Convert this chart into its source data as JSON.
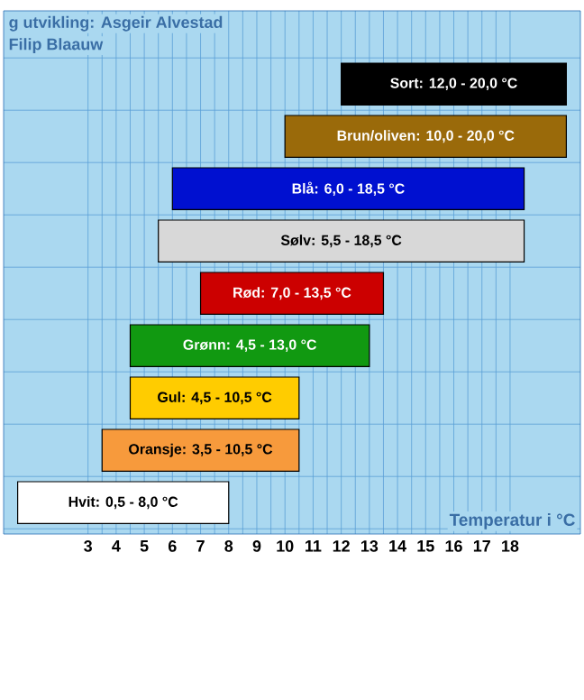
{
  "chart_data": {
    "type": "bar",
    "orientation": "horizontal",
    "annotations": [
      "g utvikling: Asgeir Alvestad",
      "Filip Blaauw"
    ],
    "xlabel": "Temperatur i °C",
    "categories": [
      null,
      null,
      null,
      null,
      null,
      null,
      null,
      null,
      null
    ],
    "base": [
      12,
      10,
      6,
      5.5,
      7,
      4.5,
      4.5,
      3.5,
      0.5
    ],
    "values": [
      8,
      10,
      12.5,
      13,
      6.5,
      8.5,
      6,
      7,
      7.5
    ],
    "colors": [
      "#000000",
      "#9a6a0a",
      "#0010d0",
      "#d8d8d8",
      "#cc0000",
      "#119911",
      "#ffcc00",
      "#f79a3c",
      "#ffffff"
    ],
    "value_labels": [
      "Sort: 12,0 - 20,0 °C",
      "Brun/oliven: 10,0 - 20,0 °C",
      "Blå: 6,0 - 18,5 °C",
      "Sølv: 5,5 - 18,5 °C",
      "Rød: 7,0 - 13,5 °C",
      "Grønn: 4,5 - 13,0 °C",
      "Gul: 4,5 - 10,5 °C",
      "Oransje: 3,5 - 10,5 °C",
      "Hvit: 0,5 - 8,0 °C"
    ],
    "xlim": [
      0,
      20.5
    ],
    "xticks": [
      3,
      4,
      5,
      6,
      7,
      8,
      9,
      10,
      11,
      12,
      13,
      14,
      15,
      16,
      17,
      18
    ],
    "grid": true
  }
}
